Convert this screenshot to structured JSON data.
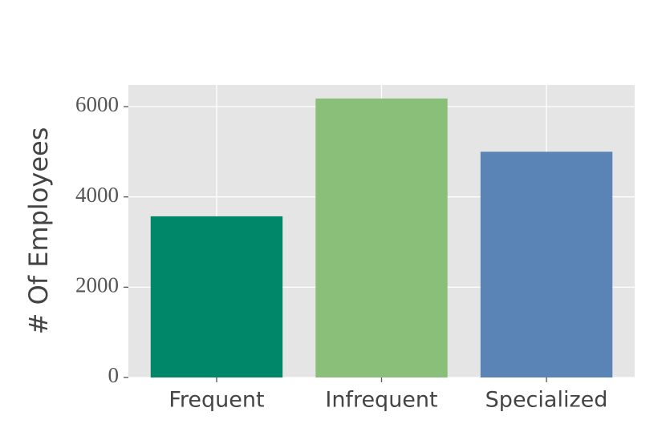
{
  "chart_data": {
    "type": "bar",
    "y_label": "# Of Employees",
    "categories": [
      "Frequent",
      "Infrequent",
      "Specialized"
    ],
    "values": [
      3570,
      6180,
      5000
    ],
    "colors": [
      "#008769",
      "#8abf79",
      "#5a83b6"
    ],
    "ylim": [
      0,
      6480
    ],
    "yticks": [
      0,
      2000,
      4000,
      6000
    ],
    "grid": true
  }
}
